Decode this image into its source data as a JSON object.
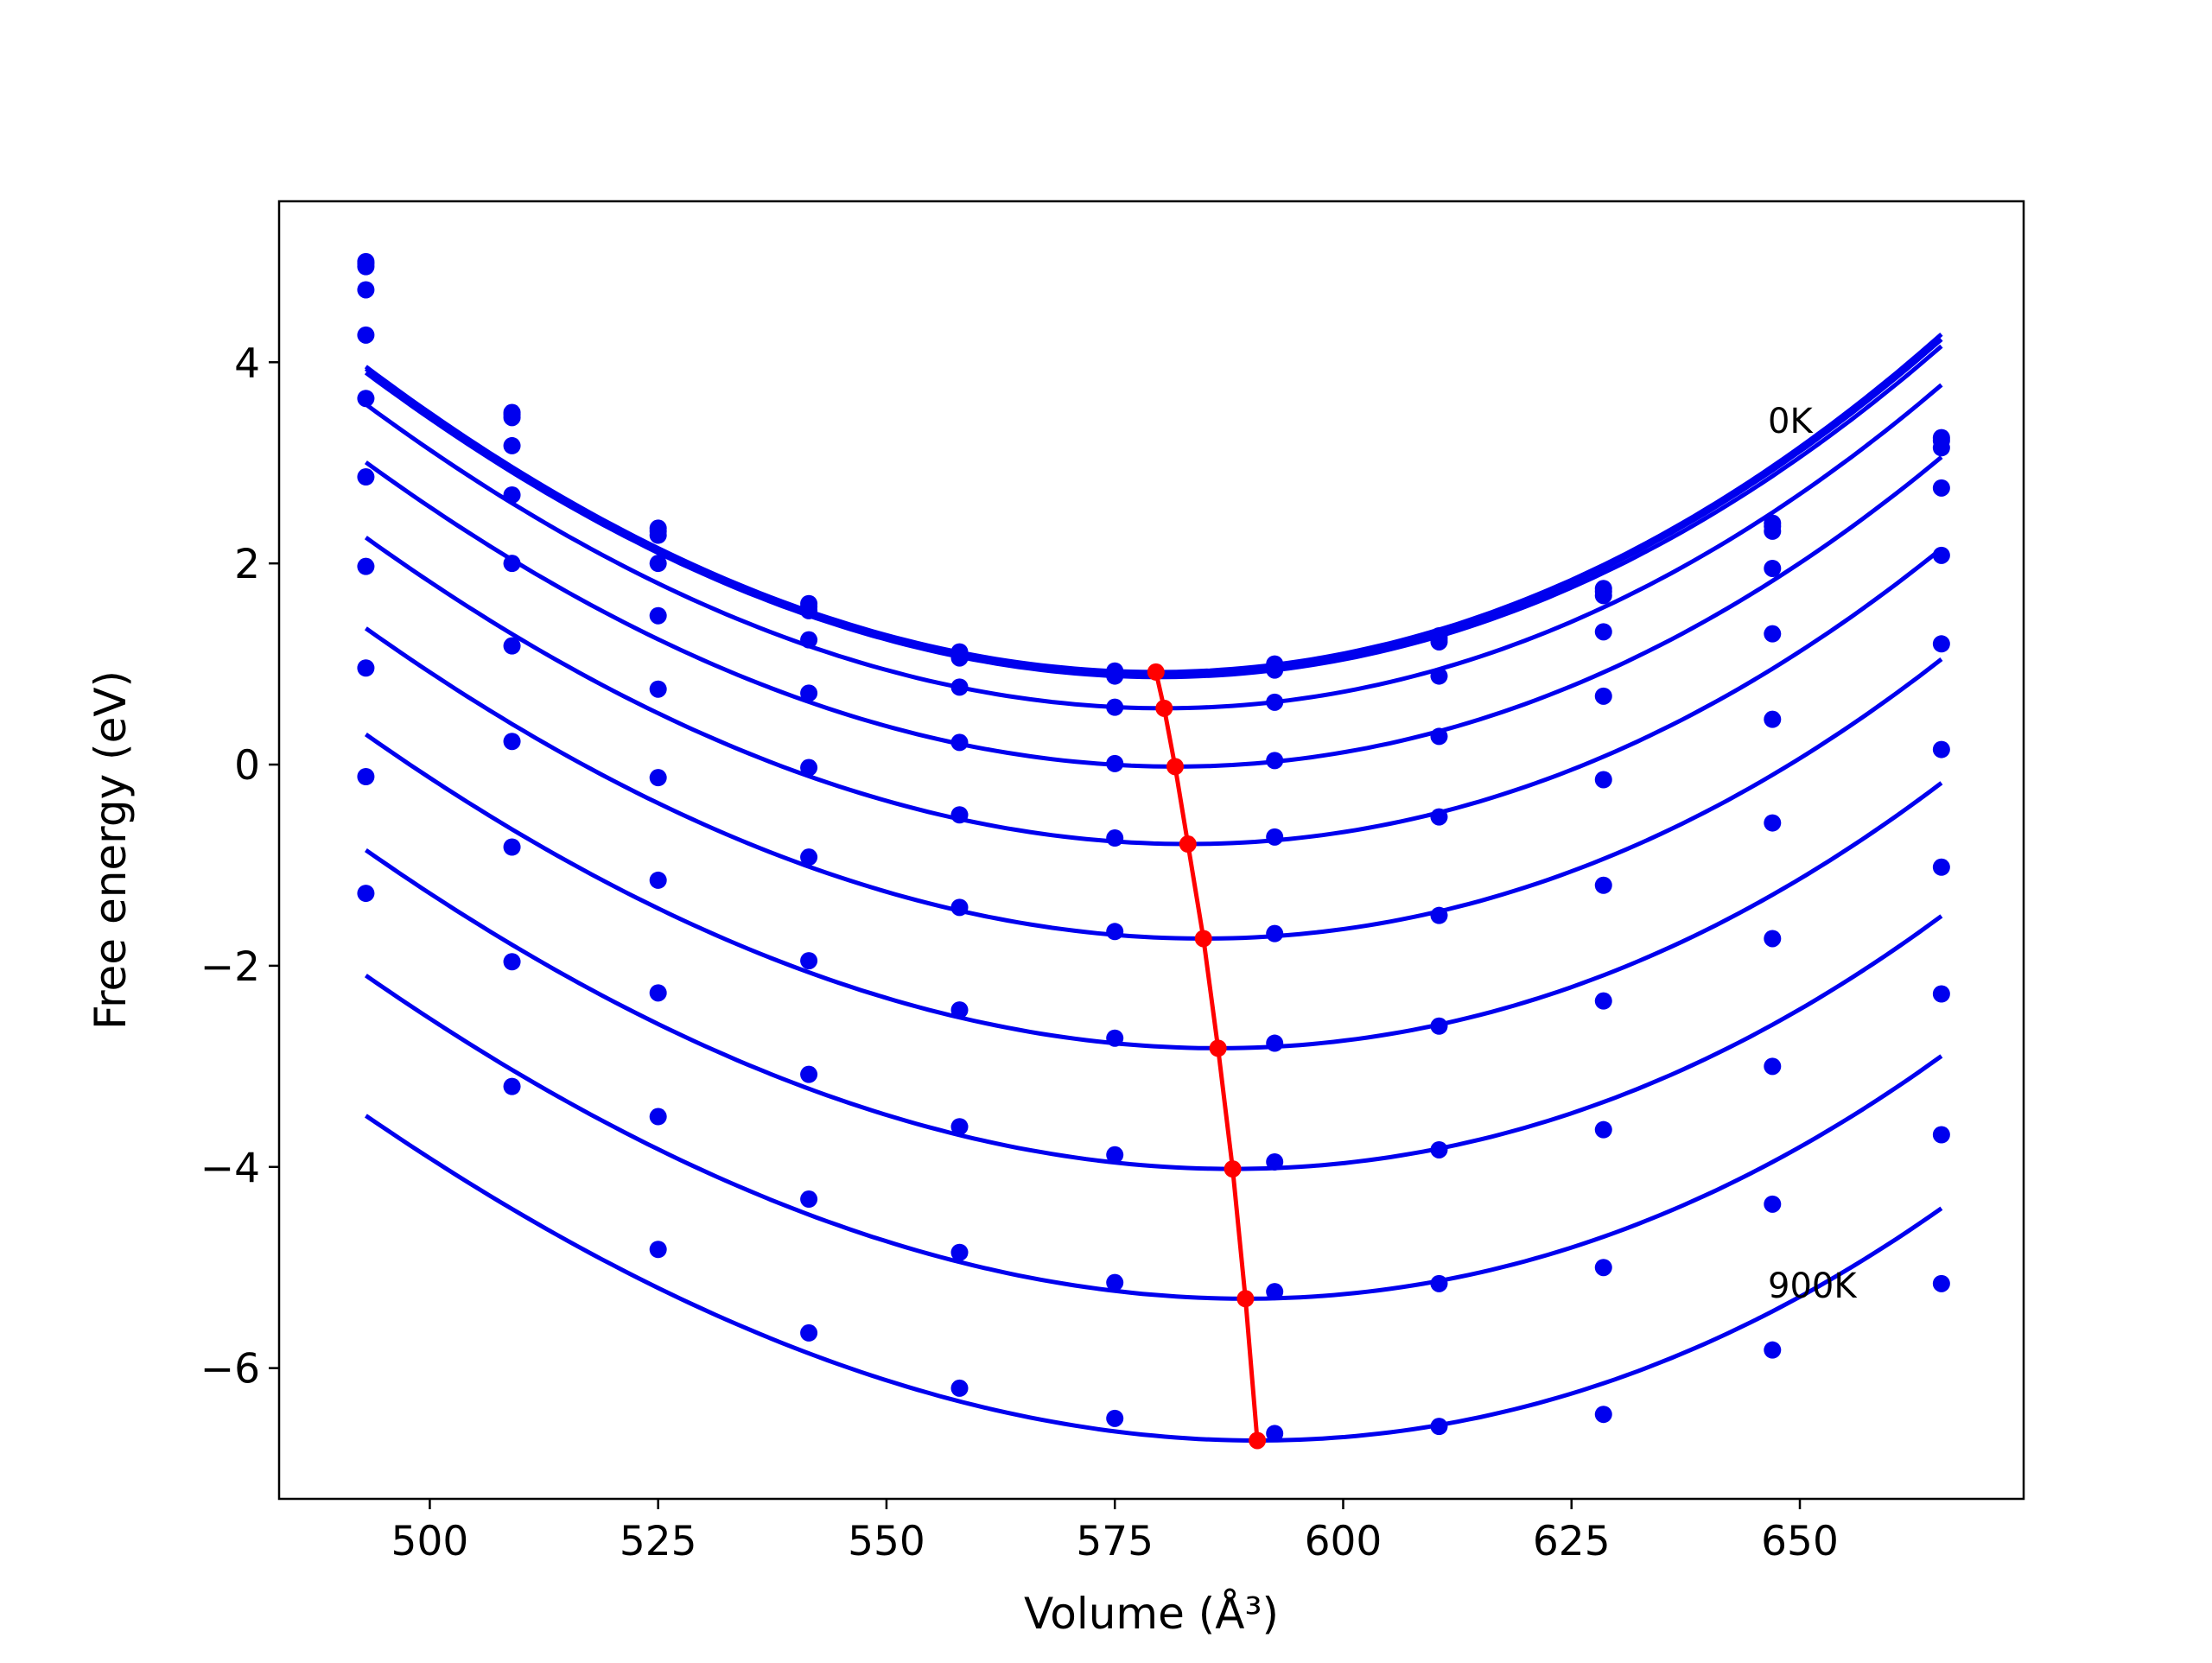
{
  "chart_data": {
    "type": "line",
    "xlabel": "Volume (Å³)",
    "ylabel": "Free energy (eV)",
    "xlim": [
      483.5,
      674.5
    ],
    "ylim": [
      -7.3,
      5.6
    ],
    "xticks": [
      500,
      525,
      550,
      575,
      600,
      625,
      650
    ],
    "xtick_labels": [
      "500",
      "525",
      "550",
      "575",
      "600",
      "625",
      "650"
    ],
    "yticks": [
      -6,
      -4,
      -2,
      0,
      2,
      4
    ],
    "ytick_labels": [
      "−6",
      "−4",
      "−2",
      "0",
      "2",
      "4"
    ],
    "grid": false,
    "annotations": [
      {
        "text": "0K",
        "x": 646.5,
        "y": 3.3
      },
      {
        "text": "900K",
        "x": 646.5,
        "y": -5.3
      }
    ],
    "x": [
      493.0,
      509.0,
      525.0,
      541.5,
      558.0,
      575.0,
      592.5,
      610.5,
      628.5,
      647.0,
      665.5
    ],
    "series": [
      {
        "values": [
          5.0,
          3.5,
          2.35,
          1.6,
          1.12,
          0.93,
          1.0,
          1.28,
          1.75,
          2.4,
          3.25
        ],
        "fit": {
          "v0": 579.5,
          "e0": 0.92,
          "a": 0.00043,
          "b": 2.8e-07
        }
      },
      {
        "values": [
          4.98,
          3.48,
          2.32,
          1.57,
          1.1,
          0.91,
          0.98,
          1.25,
          1.72,
          2.37,
          3.22
        ],
        "fit": {
          "v0": 579.7,
          "e0": 0.9,
          "a": 0.000428,
          "b": 2.8e-07
        }
      },
      {
        "values": [
          4.95,
          3.45,
          2.28,
          1.53,
          1.06,
          0.88,
          0.94,
          1.22,
          1.68,
          2.32,
          3.15
        ],
        "fit": {
          "v0": 579.9,
          "e0": 0.87,
          "a": 0.000425,
          "b": 2.8e-07
        }
      },
      {
        "values": [
          4.72,
          3.17,
          2.0,
          1.24,
          0.77,
          0.57,
          0.62,
          0.88,
          1.32,
          1.95,
          2.75
        ],
        "fit": {
          "v0": 580.4,
          "e0": 0.56,
          "a": 0.00042,
          "b": 2.8e-07
        }
      },
      {
        "values": [
          4.27,
          2.68,
          1.48,
          0.71,
          0.22,
          0.01,
          0.04,
          0.28,
          0.68,
          1.3,
          2.08
        ],
        "fit": {
          "v0": 581.6,
          "e0": -0.02,
          "a": 0.000412,
          "b": 3e-07
        }
      },
      {
        "values": [
          3.64,
          2.0,
          0.75,
          -0.03,
          -0.5,
          -0.73,
          -0.72,
          -0.52,
          -0.15,
          0.45,
          1.2
        ],
        "fit": {
          "v0": 583.0,
          "e0": -0.79,
          "a": 0.000405,
          "b": 3.2e-07
        }
      },
      {
        "values": [
          2.86,
          1.18,
          -0.13,
          -0.92,
          -1.42,
          -1.66,
          -1.68,
          -1.5,
          -1.2,
          -0.58,
          0.15
        ],
        "fit": {
          "v0": 584.7,
          "e0": -1.73,
          "a": 0.000398,
          "b": 3.4e-07
        }
      },
      {
        "values": [
          1.97,
          0.23,
          -1.15,
          -1.95,
          -2.44,
          -2.72,
          -2.77,
          -2.6,
          -2.35,
          -1.73,
          -1.02
        ],
        "fit": {
          "v0": 586.3,
          "e0": -2.82,
          "a": 0.000392,
          "b": 3.6e-07
        }
      },
      {
        "values": [
          0.96,
          -0.82,
          -2.27,
          -3.08,
          -3.6,
          -3.88,
          -3.95,
          -3.83,
          -3.63,
          -3.0,
          -2.28
        ],
        "fit": {
          "v0": 587.9,
          "e0": -4.02,
          "a": 0.000388,
          "b": 3.8e-07
        }
      },
      {
        "values": [
          -0.12,
          -1.96,
          -3.5,
          -4.32,
          -4.85,
          -5.15,
          -5.24,
          -5.16,
          -5.0,
          -4.37,
          -3.68
        ],
        "fit": {
          "v0": 589.3,
          "e0": -5.31,
          "a": 0.000385,
          "b": 4e-07
        }
      },
      {
        "values": [
          -1.28,
          -3.2,
          -4.82,
          -5.65,
          -6.2,
          -6.5,
          -6.65,
          -6.58,
          -6.46,
          -5.82,
          -5.16
        ],
        "fit": {
          "v0": 590.6,
          "e0": -6.72,
          "a": 0.00038,
          "b": 4.2e-07
        }
      }
    ],
    "minimum_series": {
      "x": [
        579.5,
        580.4,
        581.6,
        583.0,
        584.7,
        586.3,
        587.9,
        589.3,
        590.6
      ],
      "values": [
        0.92,
        0.56,
        -0.02,
        -0.79,
        -1.73,
        -2.82,
        -4.02,
        -5.31,
        -6.72
      ]
    },
    "colors": {
      "curves": "#0000ee",
      "points": "#0000ee",
      "minimum_line": "#ff0000"
    }
  }
}
